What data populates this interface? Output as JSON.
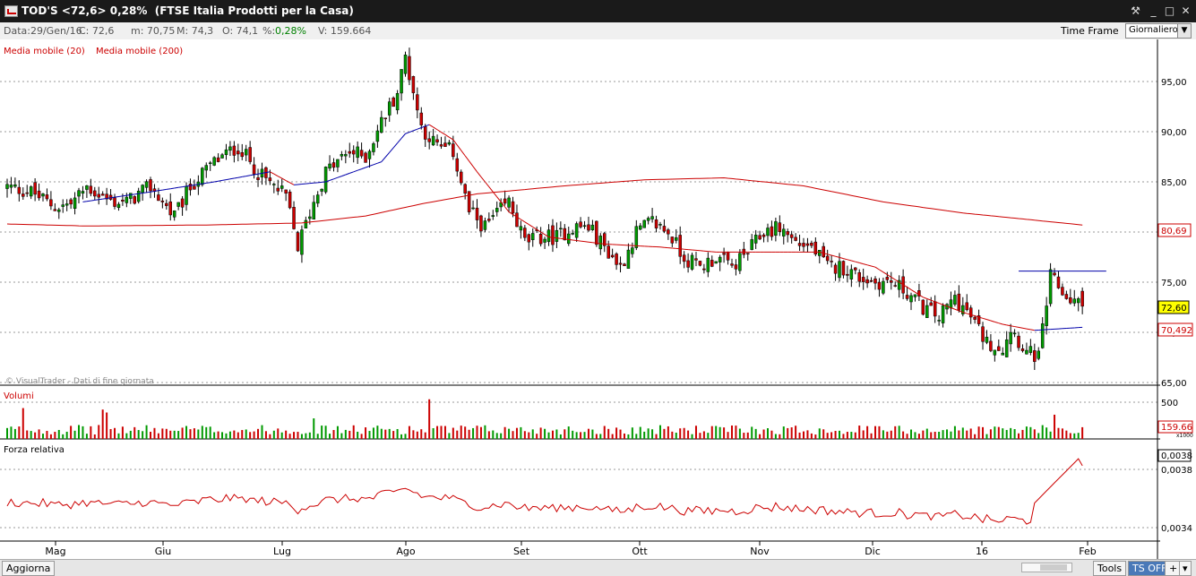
{
  "window": {
    "title": "TOD'S <72,6> 0,28%  (FTSE Italia Prodotti per la Casa)"
  },
  "infobar": {
    "data": "Data:29/Gen/16",
    "close": "C: 72,6",
    "min": "m: 70,75",
    "max": "M: 74,3",
    "open": "O: 74,1",
    "pct_label": "%:",
    "pct": "0,28%",
    "vol": "V: 159.664",
    "timeframe_label": "Time Frame",
    "timeframe_value": "Giornaliero"
  },
  "legend": {
    "ma20": "Media mobile (20)",
    "ma200": "Media mobile (200)"
  },
  "watermark": "© VisualTrader - Dati di fine giornata",
  "panels": {
    "volume_title": "Volumi",
    "rsi_title": "Forza relativa",
    "volume_axis_label": "500",
    "volume_current": "159.66",
    "volume_unit": "x1000",
    "rsi_labels": [
      "0,0038",
      "0,0038",
      "0,0034"
    ]
  },
  "price_axis": {
    "ticks": [
      "95,00",
      "90,00",
      "85,00",
      "80,00",
      "75,00",
      "70,00",
      "65,00"
    ],
    "badge_ma200": "80,69",
    "badge_last": "72,60",
    "badge_ma20": "70,492"
  },
  "x_axis": {
    "labels": [
      "Mag",
      "Giu",
      "Lug",
      "Ago",
      "Set",
      "Ott",
      "Nov",
      "Dic",
      "16",
      "Feb"
    ]
  },
  "bottombar": {
    "update": "Aggiorna",
    "tools": "Tools",
    "tsoff": "TS OFF",
    "plus": "+"
  },
  "colors": {
    "up": "#009900",
    "down": "#cc0000",
    "ma20": "#cc0000",
    "ma20_rising": "#0000aa",
    "ma200": "#cc0000",
    "grid": "#999999",
    "badge_last": "#ffff00"
  },
  "chart_data": {
    "type": "candlestick",
    "title": "TOD'S <72,6> 0,28%  (FTSE Italia Prodotti per la Casa)",
    "ylim": [
      64,
      99
    ],
    "yticks": [
      65,
      70,
      75,
      80,
      85,
      90,
      95
    ],
    "x_labels": [
      "Mag",
      "Giu",
      "Lug",
      "Ago",
      "Set",
      "Ott",
      "Nov",
      "Dic",
      "16",
      "Feb"
    ],
    "anchors": [
      [
        0,
        84.5
      ],
      [
        6,
        84.0
      ],
      [
        12,
        82.5
      ],
      [
        16,
        82.8
      ],
      [
        20,
        84.5
      ],
      [
        26,
        83.0
      ],
      [
        30,
        83.0
      ],
      [
        36,
        84.5
      ],
      [
        42,
        81.5
      ],
      [
        46,
        84.5
      ],
      [
        52,
        87.0
      ],
      [
        58,
        88.5
      ],
      [
        64,
        85.5
      ],
      [
        70,
        83.5
      ],
      [
        73,
        78.5
      ],
      [
        76,
        82.0
      ],
      [
        80,
        86.0
      ],
      [
        86,
        88.0
      ],
      [
        90,
        87.5
      ],
      [
        94,
        91.0
      ],
      [
        98,
        94.0
      ],
      [
        100,
        97.5
      ],
      [
        104,
        90.5
      ],
      [
        108,
        88.5
      ],
      [
        112,
        88.0
      ],
      [
        116,
        82.0
      ],
      [
        120,
        80.5
      ],
      [
        126,
        83.0
      ],
      [
        130,
        79.0
      ],
      [
        134,
        79.5
      ],
      [
        138,
        79.5
      ],
      [
        142,
        80.5
      ],
      [
        146,
        80.5
      ],
      [
        150,
        78.5
      ],
      [
        154,
        76.5
      ],
      [
        158,
        80.0
      ],
      [
        162,
        81.0
      ],
      [
        166,
        80.0
      ],
      [
        170,
        77.5
      ],
      [
        174,
        76.5
      ],
      [
        178,
        77.5
      ],
      [
        182,
        76.5
      ],
      [
        186,
        78.0
      ],
      [
        190,
        80.0
      ],
      [
        194,
        80.5
      ],
      [
        198,
        79.0
      ],
      [
        202,
        78.5
      ],
      [
        206,
        76.5
      ],
      [
        210,
        76.5
      ],
      [
        214,
        75.5
      ],
      [
        218,
        75.0
      ],
      [
        222,
        75.0
      ],
      [
        226,
        74.0
      ],
      [
        230,
        72.5
      ],
      [
        234,
        71.5
      ],
      [
        238,
        73.5
      ],
      [
        242,
        71.5
      ],
      [
        246,
        69.0
      ],
      [
        250,
        68.5
      ],
      [
        252,
        70.5
      ],
      [
        256,
        68.0
      ],
      [
        259,
        67.5
      ],
      [
        262,
        75.5
      ],
      [
        266,
        73.5
      ],
      [
        270,
        72.6
      ]
    ],
    "ma20_anchors": [
      [
        19,
        83.0
      ],
      [
        36,
        84.0
      ],
      [
        52,
        85.0
      ],
      [
        66,
        86.0
      ],
      [
        72,
        84.7
      ],
      [
        80,
        85.0
      ],
      [
        94,
        87.0
      ],
      [
        100,
        89.8
      ],
      [
        106,
        90.7
      ],
      [
        112,
        89.2
      ],
      [
        118,
        86.0
      ],
      [
        126,
        82.0
      ],
      [
        136,
        79.5
      ],
      [
        150,
        78.8
      ],
      [
        164,
        78.5
      ],
      [
        178,
        78.0
      ],
      [
        194,
        78.0
      ],
      [
        204,
        78.0
      ],
      [
        218,
        76.5
      ],
      [
        230,
        73.5
      ],
      [
        240,
        72.0
      ],
      [
        250,
        70.8
      ],
      [
        258,
        70.2
      ],
      [
        270,
        70.5
      ]
    ],
    "ma200_anchors": [
      [
        0,
        80.8
      ],
      [
        20,
        80.6
      ],
      [
        50,
        80.7
      ],
      [
        74,
        80.9
      ],
      [
        90,
        81.6
      ],
      [
        104,
        82.8
      ],
      [
        118,
        83.8
      ],
      [
        140,
        84.6
      ],
      [
        160,
        85.2
      ],
      [
        180,
        85.4
      ],
      [
        200,
        84.6
      ],
      [
        220,
        83.0
      ],
      [
        240,
        81.9
      ],
      [
        270,
        80.7
      ]
    ],
    "resistance_line": {
      "x": [
        254,
        276
      ],
      "value": 76.1
    },
    "volume": {
      "ylim": [
        0,
        600
      ],
      "ticks": [
        500
      ],
      "last": 159.664,
      "unit": "x1000"
    },
    "rsi": {
      "ylim": [
        0.0033,
        0.00395
      ],
      "ticks": [
        0.0038,
        0.0034
      ],
      "last": 0.0038
    },
    "last_values": {
      "close": 72.6,
      "ma20": 70.492,
      "ma200": 80.69
    }
  }
}
